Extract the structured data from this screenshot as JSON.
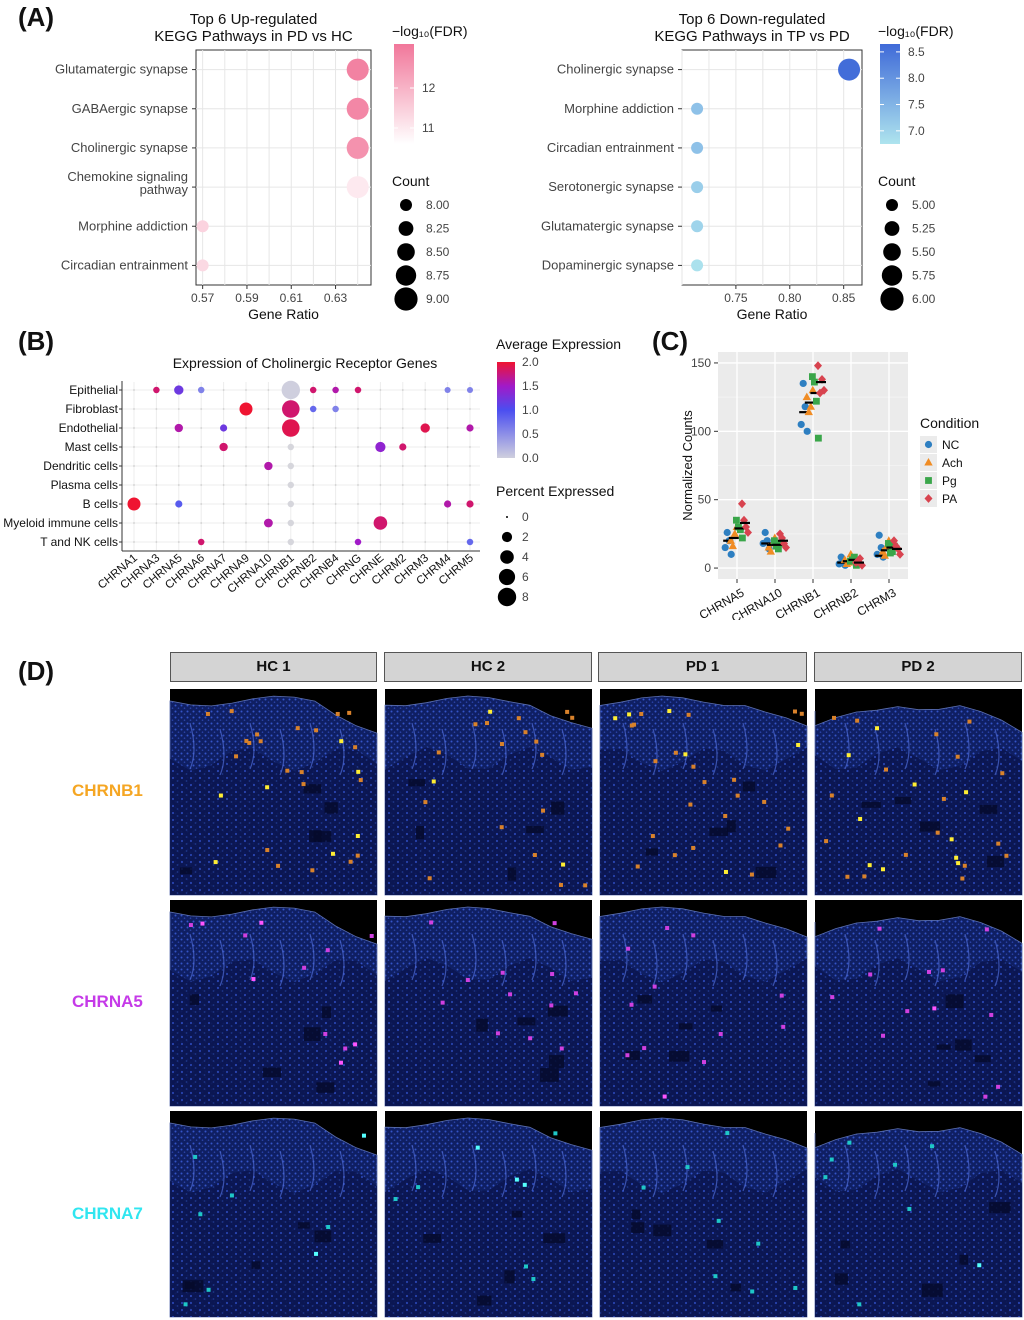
{
  "panel_letters": [
    "(A)",
    "(B)",
    "(C)",
    "(D)"
  ],
  "chart_data": [
    {
      "id": "A-left",
      "type": "scatter",
      "title": "Top 6 Up-regulated\nKEGG Pathways in PD vs HC",
      "xlabel": "Gene Ratio",
      "categories": [
        "Glutamatergic synapse",
        "GABAergic synapse",
        "Cholinergic synapse",
        "Chemokine signaling\npathway",
        "Morphine addiction",
        "Circadian entrainment"
      ],
      "xlim": [
        0.567,
        0.646
      ],
      "xticks": [
        "0.57",
        "0.59",
        "0.61",
        "0.63"
      ],
      "x": [
        0.64,
        0.64,
        0.64,
        0.64,
        0.57,
        0.57
      ],
      "count": [
        9,
        9,
        9,
        9,
        8,
        8
      ],
      "fdr": [
        12.9,
        12.8,
        12.6,
        11.0,
        11.4,
        11.3
      ],
      "color_legend": {
        "title": "−log₁₀(FDR)",
        "ticks": [
          "12",
          "11"
        ],
        "low": "#ffffff",
        "high": "#f1779a",
        "range": [
          10.6,
          13.1
        ]
      },
      "size_legend": {
        "title": "Count",
        "labels": [
          "8.00",
          "8.25",
          "8.50",
          "8.75",
          "9.00"
        ]
      }
    },
    {
      "id": "A-right",
      "type": "scatter",
      "title": "Top 6 Down-regulated\nKEGG Pathways in TP vs PD",
      "xlabel": "Gene Ratio",
      "categories": [
        "Cholinergic synapse",
        "Morphine addiction",
        "Circadian entrainment",
        "Serotonergic synapse",
        "Glutamatergic synapse",
        "Dopaminergic synapse"
      ],
      "xlim": [
        0.7,
        0.867
      ],
      "xticks": [
        "0.75",
        "0.80",
        "0.85"
      ],
      "x": [
        0.855,
        0.714,
        0.714,
        0.714,
        0.714,
        0.714
      ],
      "count": [
        6,
        5,
        5,
        5,
        5,
        5
      ],
      "fdr": [
        8.6,
        7.3,
        7.3,
        7.1,
        7.0,
        6.8
      ],
      "color_legend": {
        "title": "−log₁₀(FDR)",
        "ticks": [
          "8.5",
          "8.0",
          "7.5",
          "7.0"
        ],
        "low": "#aee4ee",
        "high": "#3f6ad8",
        "range": [
          6.75,
          8.65
        ]
      },
      "size_legend": {
        "title": "Count",
        "labels": [
          "5.00",
          "5.25",
          "5.50",
          "5.75",
          "6.00"
        ]
      }
    },
    {
      "id": "B",
      "type": "scatter",
      "title": "Expression of Cholinergic Receptor Genes",
      "genes": [
        "CHRNA1",
        "CHRNA3",
        "CHRNA5",
        "CHRNA6",
        "CHRNA7",
        "CHRNA9",
        "CHRNA10",
        "CHRNB1",
        "CHRNB2",
        "CHRNB4",
        "CHRNG",
        "CHRNE",
        "CHRM2",
        "CHRM3",
        "CHRM4",
        "CHRM5"
      ],
      "cell_types": [
        "Epithelial",
        "Fibroblast",
        "Endothelial",
        "Mast cells",
        "Dendritic cells",
        "Plasma cells",
        "B cells",
        "Myeloid immune cells",
        "T and NK cells"
      ],
      "dots": [
        {
          "cell": 0,
          "gene": 1,
          "pct": 0.6,
          "avg": 1.8
        },
        {
          "cell": 0,
          "gene": 2,
          "pct": 1.6,
          "avg": 1.2
        },
        {
          "cell": 0,
          "gene": 3,
          "pct": 0.6,
          "avg": 0.6
        },
        {
          "cell": 0,
          "gene": 7,
          "pct": 8.0,
          "avg": 0.0
        },
        {
          "cell": 0,
          "gene": 8,
          "pct": 0.6,
          "avg": 1.8
        },
        {
          "cell": 0,
          "gene": 9,
          "pct": 0.6,
          "avg": 1.6
        },
        {
          "cell": 0,
          "gene": 10,
          "pct": 0.6,
          "avg": 1.8
        },
        {
          "cell": 0,
          "gene": 14,
          "pct": 0.5,
          "avg": 0.6
        },
        {
          "cell": 0,
          "gene": 15,
          "pct": 0.5,
          "avg": 0.6
        },
        {
          "cell": 1,
          "gene": 5,
          "pct": 3.6,
          "avg": 2.0
        },
        {
          "cell": 1,
          "gene": 7,
          "pct": 7.2,
          "avg": 1.8
        },
        {
          "cell": 1,
          "gene": 8,
          "pct": 0.6,
          "avg": 0.8
        },
        {
          "cell": 1,
          "gene": 9,
          "pct": 0.6,
          "avg": 0.6
        },
        {
          "cell": 2,
          "gene": 2,
          "pct": 1.2,
          "avg": 1.6
        },
        {
          "cell": 2,
          "gene": 4,
          "pct": 0.8,
          "avg": 1.2
        },
        {
          "cell": 2,
          "gene": 7,
          "pct": 7.2,
          "avg": 1.9
        },
        {
          "cell": 2,
          "gene": 13,
          "pct": 1.6,
          "avg": 1.9
        },
        {
          "cell": 2,
          "gene": 15,
          "pct": 0.8,
          "avg": 1.6
        },
        {
          "cell": 3,
          "gene": 4,
          "pct": 1.2,
          "avg": 1.8
        },
        {
          "cell": 3,
          "gene": 11,
          "pct": 2.0,
          "avg": 1.4
        },
        {
          "cell": 3,
          "gene": 12,
          "pct": 0.8,
          "avg": 1.8
        },
        {
          "cell": 4,
          "gene": 6,
          "pct": 1.2,
          "avg": 1.6
        },
        {
          "cell": 6,
          "gene": 0,
          "pct": 3.6,
          "avg": 2.0
        },
        {
          "cell": 6,
          "gene": 2,
          "pct": 0.8,
          "avg": 0.9
        },
        {
          "cell": 6,
          "gene": 14,
          "pct": 0.8,
          "avg": 1.6
        },
        {
          "cell": 6,
          "gene": 15,
          "pct": 0.8,
          "avg": 1.8
        },
        {
          "cell": 7,
          "gene": 6,
          "pct": 1.4,
          "avg": 1.6
        },
        {
          "cell": 7,
          "gene": 11,
          "pct": 4.0,
          "avg": 1.8
        },
        {
          "cell": 8,
          "gene": 3,
          "pct": 0.6,
          "avg": 1.8
        },
        {
          "cell": 8,
          "gene": 10,
          "pct": 0.6,
          "avg": 1.5
        },
        {
          "cell": 8,
          "gene": 15,
          "pct": 0.6,
          "avg": 0.8
        }
      ],
      "color_legend": {
        "title": "Average Expression",
        "ticks": [
          "2.0",
          "1.5",
          "1.0",
          "0.5",
          "0.0"
        ]
      },
      "size_legend": {
        "title": "Percent Expressed",
        "labels": [
          "0",
          "2",
          "4",
          "6",
          "8"
        ]
      }
    },
    {
      "id": "C",
      "type": "scatter",
      "ylabel": "Normalized Counts",
      "ylim": [
        -8,
        158
      ],
      "yticks": [
        "0",
        "50",
        "100",
        "150"
      ],
      "categories": [
        "CHRNA5",
        "CHRNA10",
        "CHRNB1",
        "CHRNB2",
        "CHRM3"
      ],
      "legend": {
        "title": "Condition",
        "placement": "right"
      },
      "series": [
        {
          "name": "NC",
          "color": "#2e7fc1",
          "shape": "circle",
          "values": [
            [
              15,
              20,
              10,
              26
            ],
            [
              18,
              20,
              14,
              26
            ],
            [
              105,
              118,
              100,
              135
            ],
            [
              3,
              5,
              2,
              8
            ],
            [
              10,
              15,
              8,
              24
            ]
          ],
          "mean": [
            20,
            18,
            114,
            4,
            9
          ]
        },
        {
          "name": "Ach",
          "color": "#f08c24",
          "shape": "triangle",
          "values": [
            [
              20,
              25,
              30,
              16
            ],
            [
              15,
              18,
              22,
              12
            ],
            [
              125,
              118,
              130,
              114
            ],
            [
              6,
              4,
              10,
              3
            ],
            [
              12,
              16,
              20,
              9
            ]
          ],
          "mean": [
            22,
            17,
            121,
            5,
            13
          ]
        },
        {
          "name": "Pg",
          "color": "#3aa64a",
          "shape": "square",
          "values": [
            [
              35,
              28,
              22,
              30
            ],
            [
              20,
              14,
              18,
              16
            ],
            [
              140,
              122,
              95,
              136
            ],
            [
              5,
              8,
              2,
              6
            ],
            [
              18,
              12,
              16,
              11
            ]
          ],
          "mean": [
            29,
            17,
            128,
            6,
            15
          ]
        },
        {
          "name": "PA",
          "color": "#d8434f",
          "shape": "diamond",
          "values": [
            [
              47,
              30,
              26,
              35
            ],
            [
              25,
              18,
              15,
              22
            ],
            [
              148,
              138,
              130,
              128
            ],
            [
              4,
              7,
              2,
              5
            ],
            [
              20,
              14,
              10,
              16
            ]
          ],
          "mean": [
            33,
            20,
            136,
            4,
            14
          ]
        }
      ]
    }
  ],
  "panel_D": {
    "columns": [
      "HC 1",
      "HC 2",
      "PD 1",
      "PD 2"
    ],
    "rows": [
      {
        "gene": "CHRNB1",
        "color": "#f5a623",
        "spot_color": "#d9822b",
        "bright": "#ffee33"
      },
      {
        "gene": "CHRNA5",
        "color": "#c53ae8",
        "spot_color": "#d040e0",
        "bright": "#ff55ff"
      },
      {
        "gene": "CHRNA7",
        "color": "#30e6f0",
        "spot_color": "#1fc7c7",
        "bright": "#55ffff"
      }
    ]
  }
}
